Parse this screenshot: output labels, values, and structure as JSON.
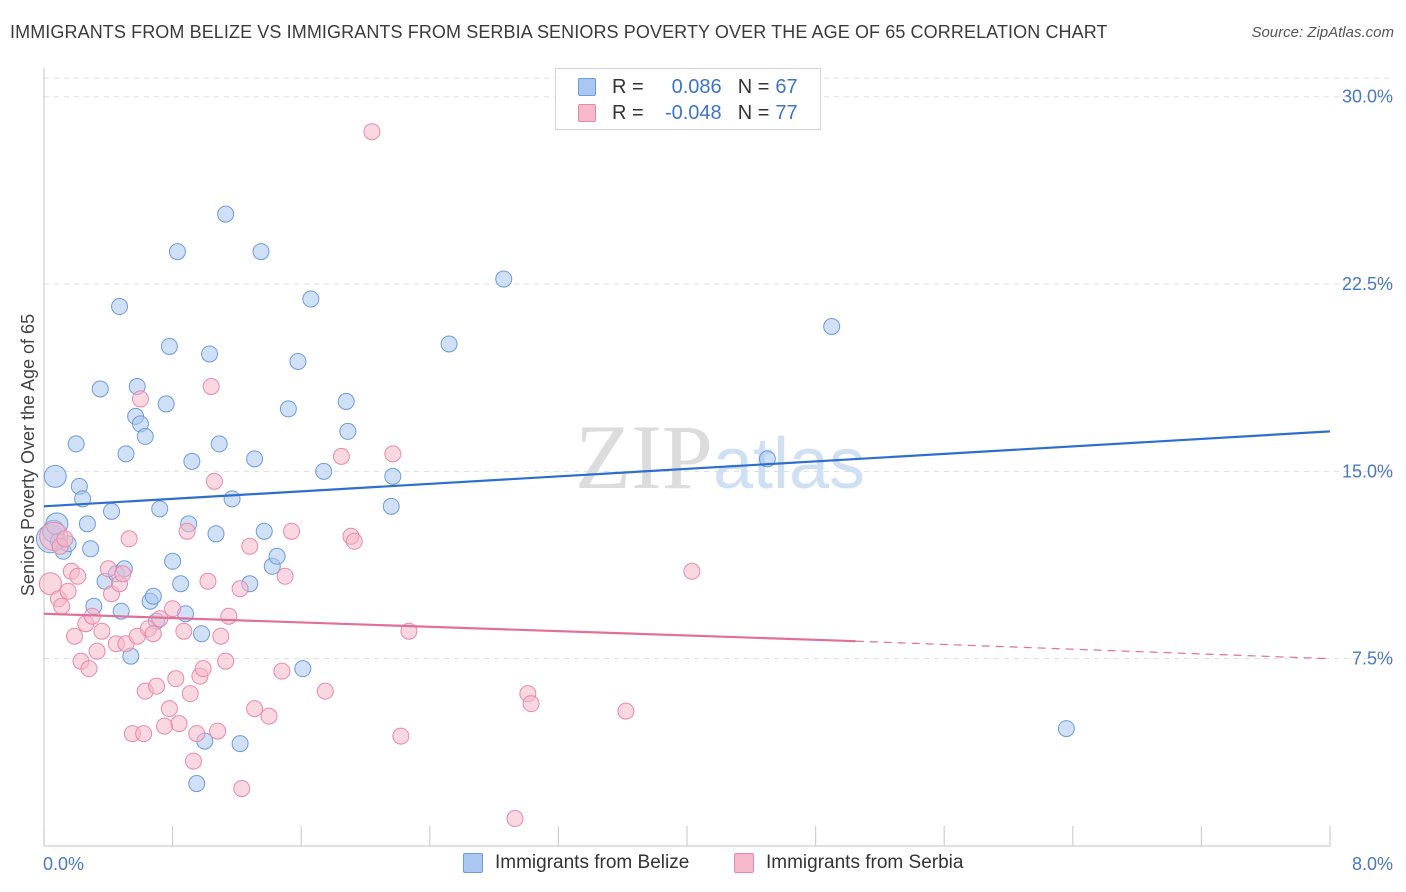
{
  "title": "IMMIGRANTS FROM BELIZE VS IMMIGRANTS FROM SERBIA SENIORS POVERTY OVER THE AGE OF 65 CORRELATION CHART",
  "source": "Source: ZipAtlas.com",
  "watermark": "ZIPatlas",
  "colors": {
    "belize_fill": "#a9c7f0",
    "belize_stroke": "#6d9bdb",
    "belize_line": "#2f6fcc",
    "serbia_fill": "#f6b8cb",
    "serbia_stroke": "#e889a9",
    "serbia_line": "#e0709a",
    "grid": "#dddddd",
    "tick_text": "#4a78c2"
  },
  "legend": {
    "rows": [
      {
        "r_label": "R =",
        "r_value": "0.086",
        "n_label": "N =",
        "n_value": "67"
      },
      {
        "r_label": "R =",
        "r_value": "-0.048",
        "n_label": "N =",
        "n_value": "77"
      }
    ]
  },
  "bottom_legend": {
    "belize": "Immigrants from Belize",
    "serbia": "Immigrants from Serbia"
  },
  "chart_data": {
    "type": "scatter",
    "title": "IMMIGRANTS FROM BELIZE VS IMMIGRANTS FROM SERBIA SENIORS POVERTY OVER THE AGE OF 65 CORRELATION CHART",
    "xlabel": "",
    "ylabel": "Seniors Poverty Over the Age of 65",
    "xlim": [
      0,
      8.0
    ],
    "ylim": [
      0,
      30.75
    ],
    "x_tick_labels": [
      "0.0%",
      "8.0%"
    ],
    "y_ticks": [
      7.5,
      15.0,
      22.5,
      30.0
    ],
    "y_tick_labels": [
      "7.5%",
      "15.0%",
      "22.5%",
      "30.0%"
    ],
    "series": [
      {
        "name": "Immigrants from Belize",
        "R": 0.086,
        "N": 67,
        "trend": {
          "x": [
            0.0,
            8.0
          ],
          "y": [
            13.6,
            16.6
          ]
        },
        "points": [
          {
            "x": 0.04,
            "y": 12.3,
            "s": 3
          },
          {
            "x": 0.06,
            "y": 12.6,
            "s": 2
          },
          {
            "x": 0.07,
            "y": 14.8,
            "s": 2
          },
          {
            "x": 0.08,
            "y": 12.9,
            "s": 2
          },
          {
            "x": 0.09,
            "y": 12.2,
            "s": 1
          },
          {
            "x": 0.12,
            "y": 11.8,
            "s": 1
          },
          {
            "x": 0.15,
            "y": 12.1,
            "s": 1
          },
          {
            "x": 0.2,
            "y": 16.1,
            "s": 1
          },
          {
            "x": 0.22,
            "y": 14.4,
            "s": 1
          },
          {
            "x": 0.24,
            "y": 13.9,
            "s": 1
          },
          {
            "x": 0.27,
            "y": 12.9,
            "s": 1
          },
          {
            "x": 0.29,
            "y": 11.9,
            "s": 1
          },
          {
            "x": 0.31,
            "y": 9.6,
            "s": 1
          },
          {
            "x": 0.35,
            "y": 18.3,
            "s": 1
          },
          {
            "x": 0.38,
            "y": 10.6,
            "s": 1
          },
          {
            "x": 0.42,
            "y": 13.4,
            "s": 1
          },
          {
            "x": 0.45,
            "y": 10.9,
            "s": 1
          },
          {
            "x": 0.47,
            "y": 21.6,
            "s": 1
          },
          {
            "x": 0.48,
            "y": 9.4,
            "s": 1
          },
          {
            "x": 0.5,
            "y": 11.1,
            "s": 1
          },
          {
            "x": 0.51,
            "y": 15.7,
            "s": 1
          },
          {
            "x": 0.54,
            "y": 7.6,
            "s": 1
          },
          {
            "x": 0.57,
            "y": 17.2,
            "s": 1
          },
          {
            "x": 0.58,
            "y": 18.4,
            "s": 1
          },
          {
            "x": 0.6,
            "y": 16.9,
            "s": 1
          },
          {
            "x": 0.63,
            "y": 16.4,
            "s": 1
          },
          {
            "x": 0.66,
            "y": 9.8,
            "s": 1
          },
          {
            "x": 0.68,
            "y": 10.0,
            "s": 1
          },
          {
            "x": 0.7,
            "y": 9.0,
            "s": 1
          },
          {
            "x": 0.72,
            "y": 13.5,
            "s": 1
          },
          {
            "x": 0.76,
            "y": 17.7,
            "s": 1
          },
          {
            "x": 0.78,
            "y": 20.0,
            "s": 1
          },
          {
            "x": 0.8,
            "y": 11.4,
            "s": 1
          },
          {
            "x": 0.83,
            "y": 23.8,
            "s": 1
          },
          {
            "x": 0.85,
            "y": 10.5,
            "s": 1
          },
          {
            "x": 0.88,
            "y": 9.3,
            "s": 1
          },
          {
            "x": 0.9,
            "y": 12.9,
            "s": 1
          },
          {
            "x": 0.92,
            "y": 15.4,
            "s": 1
          },
          {
            "x": 0.95,
            "y": 2.5,
            "s": 1
          },
          {
            "x": 0.98,
            "y": 8.5,
            "s": 1
          },
          {
            "x": 1.0,
            "y": 4.2,
            "s": 1
          },
          {
            "x": 1.03,
            "y": 19.7,
            "s": 1
          },
          {
            "x": 1.07,
            "y": 12.5,
            "s": 1
          },
          {
            "x": 1.09,
            "y": 16.1,
            "s": 1
          },
          {
            "x": 1.13,
            "y": 25.3,
            "s": 1
          },
          {
            "x": 1.17,
            "y": 13.9,
            "s": 1
          },
          {
            "x": 1.22,
            "y": 4.1,
            "s": 1
          },
          {
            "x": 1.28,
            "y": 10.5,
            "s": 1
          },
          {
            "x": 1.31,
            "y": 15.5,
            "s": 1
          },
          {
            "x": 1.35,
            "y": 23.8,
            "s": 1
          },
          {
            "x": 1.37,
            "y": 12.6,
            "s": 1
          },
          {
            "x": 1.42,
            "y": 11.2,
            "s": 1
          },
          {
            "x": 1.45,
            "y": 11.6,
            "s": 1
          },
          {
            "x": 1.52,
            "y": 17.5,
            "s": 1
          },
          {
            "x": 1.58,
            "y": 19.4,
            "s": 1
          },
          {
            "x": 1.61,
            "y": 7.1,
            "s": 1
          },
          {
            "x": 1.66,
            "y": 21.9,
            "s": 1
          },
          {
            "x": 1.74,
            "y": 15.0,
            "s": 1
          },
          {
            "x": 1.88,
            "y": 17.8,
            "s": 1
          },
          {
            "x": 1.89,
            "y": 16.6,
            "s": 1
          },
          {
            "x": 2.16,
            "y": 13.6,
            "s": 1
          },
          {
            "x": 2.17,
            "y": 14.8,
            "s": 1
          },
          {
            "x": 2.52,
            "y": 20.1,
            "s": 1
          },
          {
            "x": 2.86,
            "y": 22.7,
            "s": 1
          },
          {
            "x": 4.5,
            "y": 15.5,
            "s": 1
          },
          {
            "x": 4.9,
            "y": 20.8,
            "s": 1
          },
          {
            "x": 6.36,
            "y": 4.7,
            "s": 1
          }
        ]
      },
      {
        "name": "Immigrants from Serbia",
        "R": -0.048,
        "N": 77,
        "trend": {
          "x": [
            0.0,
            5.05
          ],
          "y": [
            9.3,
            8.2
          ]
        },
        "trend_dashed": {
          "x": [
            5.05,
            8.0
          ],
          "y": [
            8.2,
            7.5
          ]
        },
        "points": [
          {
            "x": 0.04,
            "y": 10.5,
            "s": 2
          },
          {
            "x": 0.06,
            "y": 12.4,
            "s": 3
          },
          {
            "x": 0.09,
            "y": 9.9,
            "s": 1
          },
          {
            "x": 0.1,
            "y": 12.0,
            "s": 1
          },
          {
            "x": 0.11,
            "y": 9.6,
            "s": 1
          },
          {
            "x": 0.13,
            "y": 12.3,
            "s": 1
          },
          {
            "x": 0.15,
            "y": 10.2,
            "s": 1
          },
          {
            "x": 0.17,
            "y": 11.0,
            "s": 1
          },
          {
            "x": 0.19,
            "y": 8.4,
            "s": 1
          },
          {
            "x": 0.21,
            "y": 10.8,
            "s": 1
          },
          {
            "x": 0.23,
            "y": 7.4,
            "s": 1
          },
          {
            "x": 0.26,
            "y": 8.9,
            "s": 1
          },
          {
            "x": 0.28,
            "y": 7.1,
            "s": 1
          },
          {
            "x": 0.3,
            "y": 9.2,
            "s": 1
          },
          {
            "x": 0.33,
            "y": 7.8,
            "s": 1
          },
          {
            "x": 0.36,
            "y": 8.6,
            "s": 1
          },
          {
            "x": 0.4,
            "y": 11.1,
            "s": 1
          },
          {
            "x": 0.42,
            "y": 10.1,
            "s": 1
          },
          {
            "x": 0.45,
            "y": 8.1,
            "s": 1
          },
          {
            "x": 0.47,
            "y": 10.5,
            "s": 1
          },
          {
            "x": 0.49,
            "y": 10.9,
            "s": 1
          },
          {
            "x": 0.51,
            "y": 8.1,
            "s": 1
          },
          {
            "x": 0.53,
            "y": 12.3,
            "s": 1
          },
          {
            "x": 0.55,
            "y": 4.5,
            "s": 1
          },
          {
            "x": 0.58,
            "y": 8.4,
            "s": 1
          },
          {
            "x": 0.6,
            "y": 17.9,
            "s": 1
          },
          {
            "x": 0.62,
            "y": 4.5,
            "s": 1
          },
          {
            "x": 0.63,
            "y": 6.2,
            "s": 1
          },
          {
            "x": 0.65,
            "y": 8.7,
            "s": 1
          },
          {
            "x": 0.68,
            "y": 8.5,
            "s": 1
          },
          {
            "x": 0.7,
            "y": 6.4,
            "s": 1
          },
          {
            "x": 0.72,
            "y": 9.1,
            "s": 1
          },
          {
            "x": 0.75,
            "y": 4.8,
            "s": 1
          },
          {
            "x": 0.78,
            "y": 5.5,
            "s": 1
          },
          {
            "x": 0.8,
            "y": 9.5,
            "s": 1
          },
          {
            "x": 0.82,
            "y": 6.7,
            "s": 1
          },
          {
            "x": 0.84,
            "y": 4.9,
            "s": 1
          },
          {
            "x": 0.87,
            "y": 8.6,
            "s": 1
          },
          {
            "x": 0.89,
            "y": 12.6,
            "s": 1
          },
          {
            "x": 0.91,
            "y": 6.1,
            "s": 1
          },
          {
            "x": 0.93,
            "y": 3.4,
            "s": 1
          },
          {
            "x": 0.95,
            "y": 4.5,
            "s": 1
          },
          {
            "x": 0.97,
            "y": 6.8,
            "s": 1
          },
          {
            "x": 0.99,
            "y": 7.1,
            "s": 1
          },
          {
            "x": 1.02,
            "y": 10.6,
            "s": 1
          },
          {
            "x": 1.04,
            "y": 18.4,
            "s": 1
          },
          {
            "x": 1.06,
            "y": 14.6,
            "s": 1
          },
          {
            "x": 1.08,
            "y": 4.6,
            "s": 1
          },
          {
            "x": 1.1,
            "y": 8.4,
            "s": 1
          },
          {
            "x": 1.13,
            "y": 7.4,
            "s": 1
          },
          {
            "x": 1.15,
            "y": 9.2,
            "s": 1
          },
          {
            "x": 1.22,
            "y": 10.3,
            "s": 1
          },
          {
            "x": 1.23,
            "y": 2.3,
            "s": 1
          },
          {
            "x": 1.28,
            "y": 12.0,
            "s": 1
          },
          {
            "x": 1.31,
            "y": 5.5,
            "s": 1
          },
          {
            "x": 1.4,
            "y": 5.2,
            "s": 1
          },
          {
            "x": 1.48,
            "y": 7.0,
            "s": 1
          },
          {
            "x": 1.5,
            "y": 10.8,
            "s": 1
          },
          {
            "x": 1.54,
            "y": 12.6,
            "s": 1
          },
          {
            "x": 1.75,
            "y": 6.2,
            "s": 1
          },
          {
            "x": 1.85,
            "y": 15.6,
            "s": 1
          },
          {
            "x": 1.91,
            "y": 12.4,
            "s": 1
          },
          {
            "x": 1.93,
            "y": 12.2,
            "s": 1
          },
          {
            "x": 2.04,
            "y": 28.6,
            "s": 1
          },
          {
            "x": 2.17,
            "y": 15.7,
            "s": 1
          },
          {
            "x": 2.22,
            "y": 4.4,
            "s": 1
          },
          {
            "x": 2.27,
            "y": 8.6,
            "s": 1
          },
          {
            "x": 2.93,
            "y": 1.1,
            "s": 1
          },
          {
            "x": 3.01,
            "y": 6.1,
            "s": 1
          },
          {
            "x": 3.03,
            "y": 5.7,
            "s": 1
          },
          {
            "x": 3.62,
            "y": 5.4,
            "s": 1
          },
          {
            "x": 4.03,
            "y": 11.0,
            "s": 1
          }
        ]
      }
    ]
  }
}
